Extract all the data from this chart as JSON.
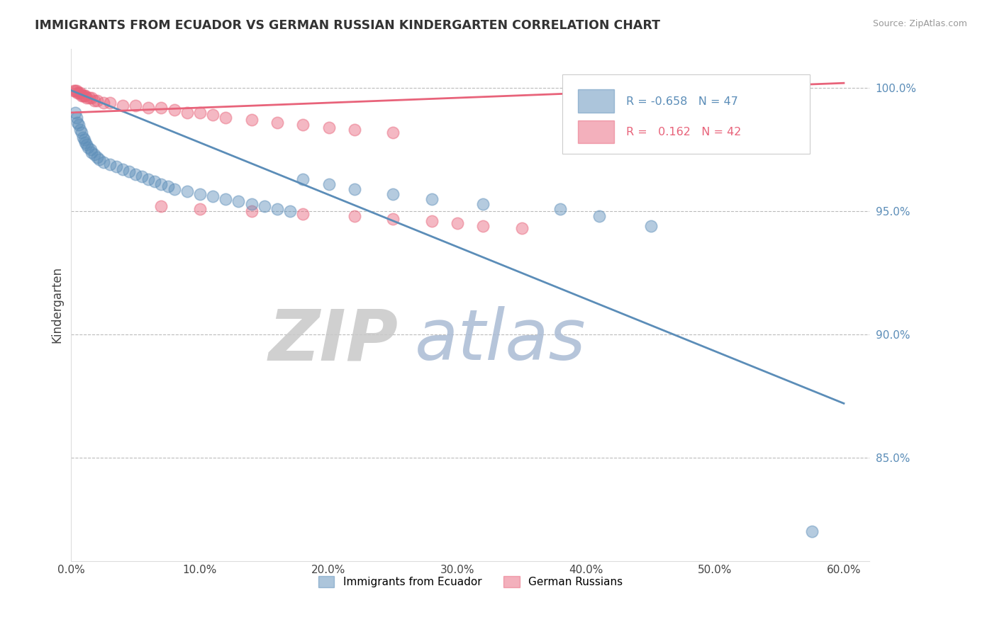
{
  "title": "IMMIGRANTS FROM ECUADOR VS GERMAN RUSSIAN KINDERGARTEN CORRELATION CHART",
  "source": "Source: ZipAtlas.com",
  "ylabel": "Kindergarten",
  "xlim": [
    0,
    62
  ],
  "ylim": [
    0.808,
    1.016
  ],
  "x_tick_vals": [
    0,
    10,
    20,
    30,
    40,
    50,
    60
  ],
  "y_tick_positions": [
    0.85,
    0.9,
    0.95,
    1.0
  ],
  "y_tick_labels": [
    "85.0%",
    "90.0%",
    "95.0%",
    "100.0%"
  ],
  "blue_R": -0.658,
  "blue_N": 47,
  "pink_R": 0.162,
  "pink_N": 42,
  "blue_color": "#5B8DB8",
  "pink_color": "#E8637A",
  "blue_scatter_x": [
    0.3,
    0.4,
    0.5,
    0.6,
    0.7,
    0.8,
    0.9,
    1.0,
    1.1,
    1.2,
    1.3,
    1.5,
    1.6,
    1.8,
    2.0,
    2.2,
    2.5,
    3.0,
    3.5,
    4.0,
    4.5,
    5.0,
    5.5,
    6.0,
    6.5,
    7.0,
    7.5,
    8.0,
    9.0,
    10.0,
    11.0,
    12.0,
    13.0,
    14.0,
    15.0,
    16.0,
    17.0,
    18.0,
    20.0,
    22.0,
    25.0,
    28.0,
    32.0,
    38.0,
    41.0,
    45.0,
    57.5
  ],
  "blue_scatter_y": [
    0.99,
    0.988,
    0.986,
    0.985,
    0.983,
    0.982,
    0.98,
    0.979,
    0.978,
    0.977,
    0.976,
    0.975,
    0.974,
    0.973,
    0.972,
    0.971,
    0.97,
    0.969,
    0.968,
    0.967,
    0.966,
    0.965,
    0.964,
    0.963,
    0.962,
    0.961,
    0.96,
    0.959,
    0.958,
    0.957,
    0.956,
    0.955,
    0.954,
    0.953,
    0.952,
    0.951,
    0.95,
    0.963,
    0.961,
    0.959,
    0.957,
    0.955,
    0.953,
    0.951,
    0.948,
    0.944,
    0.82
  ],
  "pink_scatter_x": [
    0.2,
    0.3,
    0.4,
    0.5,
    0.6,
    0.7,
    0.8,
    0.9,
    1.0,
    1.1,
    1.2,
    1.4,
    1.6,
    1.8,
    2.0,
    2.5,
    3.0,
    4.0,
    5.0,
    6.0,
    7.0,
    8.0,
    9.0,
    10.0,
    11.0,
    12.0,
    14.0,
    16.0,
    18.0,
    20.0,
    22.0,
    25.0,
    7.0,
    10.0,
    14.0,
    18.0,
    22.0,
    25.0,
    28.0,
    30.0,
    32.0,
    35.0
  ],
  "pink_scatter_y": [
    0.999,
    0.999,
    0.999,
    0.998,
    0.998,
    0.998,
    0.997,
    0.997,
    0.997,
    0.997,
    0.996,
    0.996,
    0.996,
    0.995,
    0.995,
    0.994,
    0.994,
    0.993,
    0.993,
    0.992,
    0.992,
    0.991,
    0.99,
    0.99,
    0.989,
    0.988,
    0.987,
    0.986,
    0.985,
    0.984,
    0.983,
    0.982,
    0.952,
    0.951,
    0.95,
    0.949,
    0.948,
    0.947,
    0.946,
    0.945,
    0.944,
    0.943
  ],
  "blue_trend_x": [
    0.0,
    60.0
  ],
  "blue_trend_y": [
    0.999,
    0.872
  ],
  "pink_trend_x": [
    0.0,
    60.0
  ],
  "pink_trend_y": [
    0.99,
    1.002
  ],
  "watermark_zip_color": "#C8C8C8",
  "watermark_atlas_color": "#AABBD4",
  "grid_color": "#BBBBBB",
  "grid_style": "--",
  "background_color": "#FFFFFF",
  "legend_labels": [
    "Immigrants from Ecuador",
    "German Russians"
  ]
}
